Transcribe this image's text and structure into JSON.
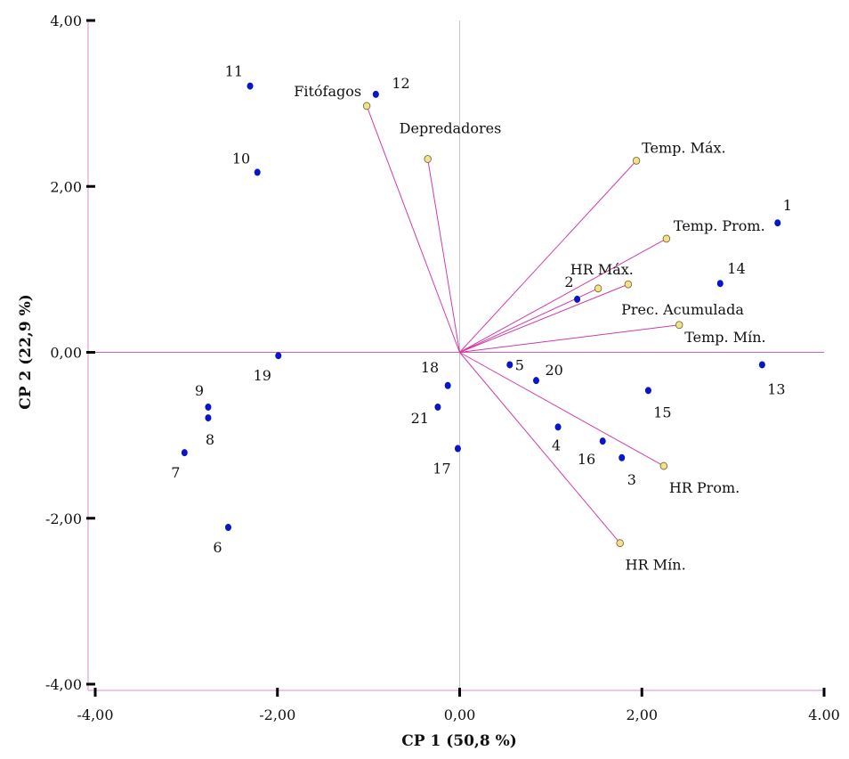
{
  "chart_data": {
    "type": "scatter",
    "subtype": "pca-biplot",
    "xlabel": "CP 1 (50,8 %)",
    "ylabel": "CP 2 (22,9 %)",
    "xlim": [
      -4,
      4
    ],
    "ylim": [
      -4,
      4
    ],
    "x_ticks": [
      {
        "value": -4,
        "label": "-4,00"
      },
      {
        "value": -2,
        "label": "-2,00"
      },
      {
        "value": 0,
        "label": "0,00"
      },
      {
        "value": 2,
        "label": "2,00"
      },
      {
        "value": 4,
        "label": "4.00"
      }
    ],
    "y_ticks": [
      {
        "value": 4,
        "label": "4,00"
      },
      {
        "value": 2,
        "label": "2,00"
      },
      {
        "value": 0,
        "label": "0,00"
      },
      {
        "value": -2,
        "label": "-2,00"
      },
      {
        "value": -4,
        "label": "-4,00"
      }
    ],
    "colors": {
      "observation_fill": "#0a14c8",
      "variable_fill": "#f3e08a",
      "variable_stroke": "#6b6030",
      "vector": "#d23ca5",
      "axis_frame": "#d890c8",
      "zero_vertical": "#c8c8c8",
      "zero_horizontal": "#d060b8",
      "tick_marks": "#000000"
    },
    "observations": [
      {
        "label": "1",
        "x": 3.49,
        "y": 1.56
      },
      {
        "label": "2",
        "x": 1.29,
        "y": 0.64
      },
      {
        "label": "3",
        "x": 1.78,
        "y": -1.27
      },
      {
        "label": "4",
        "x": 1.08,
        "y": -0.9
      },
      {
        "label": "5",
        "x": 0.55,
        "y": -0.15
      },
      {
        "label": "6",
        "x": -2.54,
        "y": -2.11
      },
      {
        "label": "7",
        "x": -3.02,
        "y": -1.21
      },
      {
        "label": "8",
        "x": -2.76,
        "y": -0.79
      },
      {
        "label": "9",
        "x": -2.76,
        "y": -0.66
      },
      {
        "label": "10",
        "x": -2.22,
        "y": 2.17
      },
      {
        "label": "11",
        "x": -2.3,
        "y": 3.21
      },
      {
        "label": "12",
        "x": -0.92,
        "y": 3.11
      },
      {
        "label": "13",
        "x": 3.32,
        "y": -0.15
      },
      {
        "label": "14",
        "x": 2.86,
        "y": 0.83
      },
      {
        "label": "15",
        "x": 2.07,
        "y": -0.46
      },
      {
        "label": "16",
        "x": 1.57,
        "y": -1.07
      },
      {
        "label": "17",
        "x": -0.02,
        "y": -1.16
      },
      {
        "label": "18",
        "x": -0.13,
        "y": -0.4
      },
      {
        "label": "19",
        "x": -1.99,
        "y": -0.04
      },
      {
        "label": "20",
        "x": 0.84,
        "y": -0.34
      },
      {
        "label": "21",
        "x": -0.24,
        "y": -0.66
      }
    ],
    "variables": [
      {
        "label": "Fitófagos",
        "x": -1.02,
        "y": 2.97
      },
      {
        "label": "Depredadores",
        "x": -0.35,
        "y": 2.33
      },
      {
        "label": "Temp. Máx.",
        "x": 1.94,
        "y": 2.31
      },
      {
        "label": "Temp. Prom.",
        "x": 2.27,
        "y": 1.37
      },
      {
        "label": "HR Máx.",
        "x": 1.85,
        "y": 0.82
      },
      {
        "label": "Prec. Acumulada",
        "x": 1.52,
        "y": 0.77
      },
      {
        "label": "Temp. Mín.",
        "x": 2.41,
        "y": 0.33
      },
      {
        "label": "HR Prom.",
        "x": 2.24,
        "y": -1.37
      },
      {
        "label": "HR Mín.",
        "x": 1.76,
        "y": -2.3
      }
    ]
  }
}
